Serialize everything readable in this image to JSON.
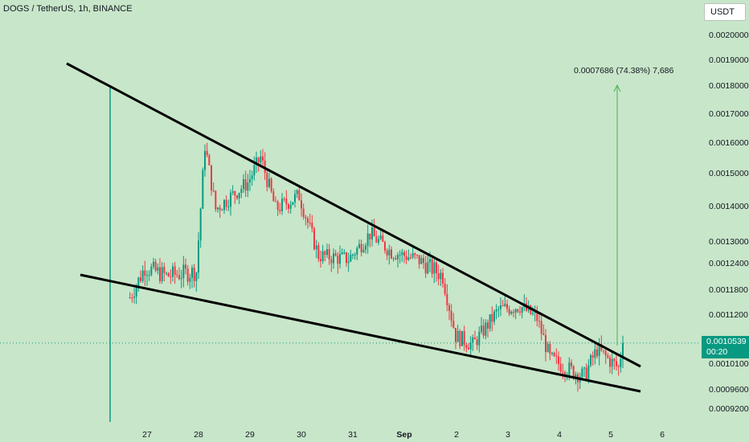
{
  "header": {
    "symbol_title": "DOGS / TetherUS, 1h, BINANCE",
    "currency_button": "USDT"
  },
  "current_price": {
    "value": "0.0010539",
    "countdown": "00:20"
  },
  "colors": {
    "background": "#c8e6c9",
    "up": "#089981",
    "down": "#f23645",
    "trendline": "#000000",
    "projection": "#4caf50"
  },
  "chart_data": {
    "type": "candlestick",
    "title": "DOGS / TetherUS, 1h, BINANCE",
    "y_scale": "log",
    "y_ticks": [
      "0.0020000",
      "0.0019000",
      "0.0018000",
      "0.0017000",
      "0.0016000",
      "0.0015000",
      "0.0014000",
      "0.0013000",
      "0.0012400",
      "0.0011800",
      "0.0011200",
      "0.0010100",
      "0.0009600",
      "0.0009200"
    ],
    "x_ticks": [
      "27",
      "28",
      "29",
      "30",
      "31",
      "Sep",
      "2",
      "3",
      "4",
      "5",
      "6"
    ],
    "annotations": {
      "projection_label": "0.0007686 (74.38%) 7,686"
    },
    "path_points": [
      {
        "t": "26 16:00",
        "p": 0.00116
      },
      {
        "t": "26 23:00",
        "p": 0.00123
      },
      {
        "t": "27 09:00",
        "p": 0.00121
      },
      {
        "t": "27 23:00",
        "p": 0.00122
      },
      {
        "t": "28 03:00",
        "p": 0.00159
      },
      {
        "t": "28 08:00",
        "p": 0.00139
      },
      {
        "t": "28 23:00",
        "p": 0.00147
      },
      {
        "t": "29 05:00",
        "p": 0.00155
      },
      {
        "t": "29 12:00",
        "p": 0.00139
      },
      {
        "t": "29 23:00",
        "p": 0.00143
      },
      {
        "t": "30 08:00",
        "p": 0.00126
      },
      {
        "t": "30 22:00",
        "p": 0.00125
      },
      {
        "t": "31 08:00",
        "p": 0.00132
      },
      {
        "t": "31 18:00",
        "p": 0.00127
      },
      {
        "t": "Sep 1 06:00",
        "p": 0.00125
      },
      {
        "t": "Sep 1 18:00",
        "p": 0.00121
      },
      {
        "t": "2 00:00",
        "p": 0.00107
      },
      {
        "t": "2 08:00",
        "p": 0.00105
      },
      {
        "t": "2 20:00",
        "p": 0.00113
      },
      {
        "t": "3 06:00",
        "p": 0.00114
      },
      {
        "t": "3 14:00",
        "p": 0.00111
      },
      {
        "t": "3 20:00",
        "p": 0.00102
      },
      {
        "t": "4 06:00",
        "p": 0.000995
      },
      {
        "t": "4 12:00",
        "p": 0.000985
      },
      {
        "t": "4 18:00",
        "p": 0.00104
      },
      {
        "t": "5 04:00",
        "p": 0.001
      },
      {
        "t": "5 06:00",
        "p": 0.0010539
      }
    ]
  }
}
